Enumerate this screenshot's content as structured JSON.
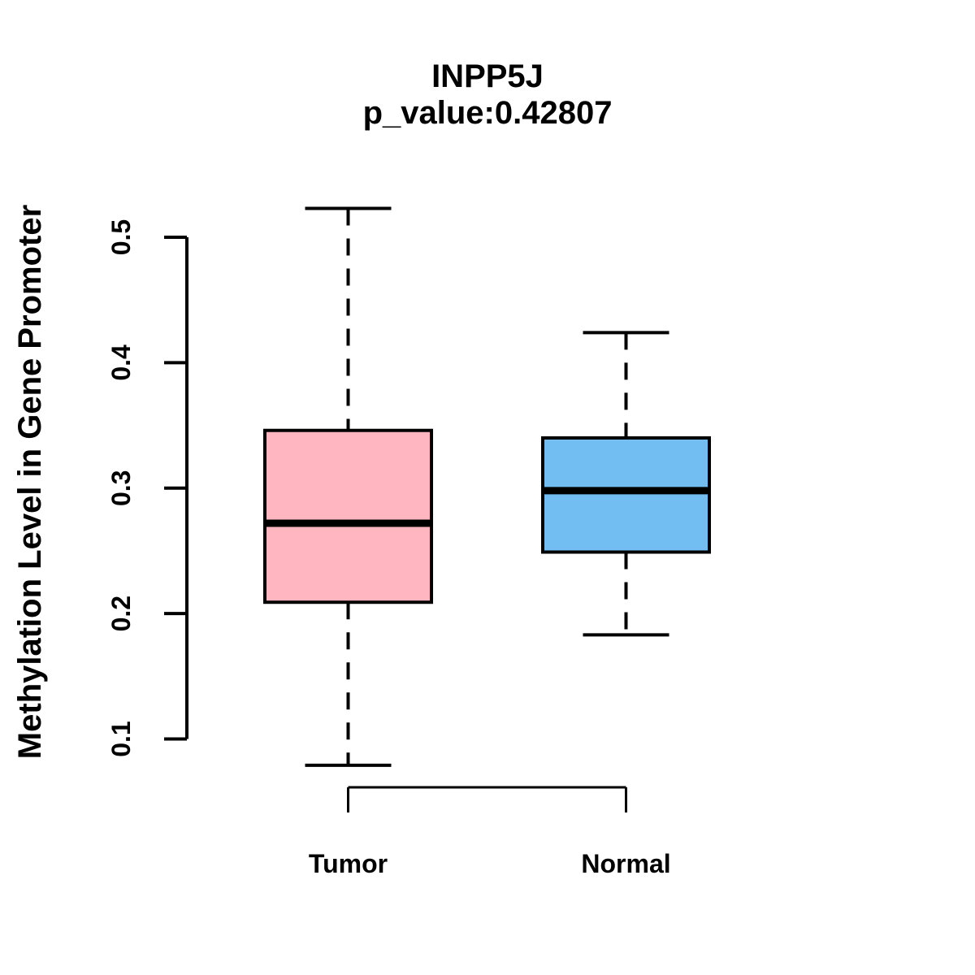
{
  "figure": {
    "title": "INPP5J",
    "subtitle": "p_value:0.42807"
  },
  "chart_data": {
    "type": "boxplot",
    "title": "INPP5J",
    "subtitle": "p_value:0.42807",
    "ylabel": "Methylation Level in Gene Promoter",
    "xlabel": "",
    "ylim": [
      0.1,
      0.5
    ],
    "y_ticks": [
      "0.1",
      "0.2",
      "0.3",
      "0.4",
      "0.5"
    ],
    "grid": "off",
    "groups": [
      {
        "label": "Tumor",
        "fill_color": "#FFB6C1",
        "stats": {
          "whisker_low": 0.079,
          "q1": 0.209,
          "median": 0.272,
          "q3": 0.346,
          "whisker_high": 0.523
        }
      },
      {
        "label": "Normal",
        "fill_color": "#72BEF2",
        "stats": {
          "whisker_low": 0.183,
          "q1": 0.249,
          "median": 0.298,
          "q3": 0.34,
          "whisker_high": 0.424
        }
      }
    ],
    "styles": {
      "box_border_color": "#000000",
      "median_color": "#000000",
      "axis_color": "#000000",
      "background": "#FFFFFF"
    }
  }
}
